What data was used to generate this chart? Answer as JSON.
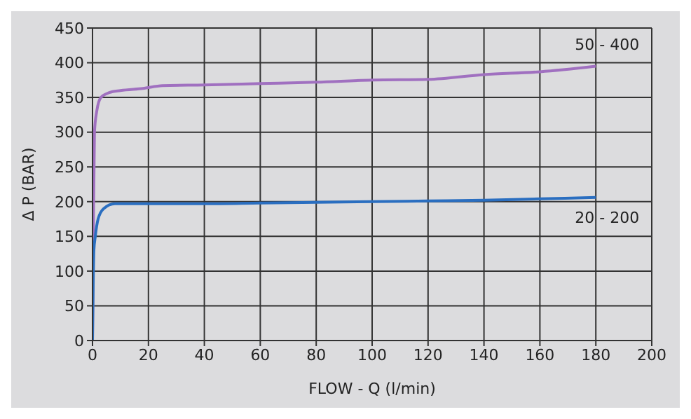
{
  "chart_data": {
    "type": "line",
    "xlabel": "FLOW - Q (l/min)",
    "ylabel": "Δ P (BAR)",
    "xlim": [
      0,
      200
    ],
    "xticks": [
      0,
      20,
      40,
      60,
      80,
      100,
      120,
      140,
      160,
      180,
      200
    ],
    "ylim": [
      0,
      450
    ],
    "yticks": [
      0,
      50,
      100,
      150,
      200,
      250,
      300,
      350,
      400,
      450
    ],
    "grid": true,
    "marker": "none",
    "line_style": "solid",
    "series": [
      {
        "name": "50 - 400",
        "color": "#a070c0",
        "x": [
          0,
          0.3,
          0.7,
          1.5,
          3,
          6,
          10,
          18,
          25,
          40,
          60,
          80,
          100,
          120,
          140,
          160,
          180
        ],
        "values": [
          0,
          150,
          300,
          330,
          350,
          357,
          360,
          363,
          367,
          368,
          370,
          372,
          375,
          376,
          383,
          387,
          395
        ]
      },
      {
        "name": "20 - 200",
        "color": "#2a6ec0",
        "x": [
          0,
          0.5,
          1,
          2,
          4,
          8,
          20,
          40,
          60,
          80,
          100,
          120,
          140,
          160,
          180
        ],
        "values": [
          0,
          130,
          150,
          175,
          190,
          197,
          197,
          197,
          198,
          199,
          200,
          201,
          202,
          204,
          206
        ]
      }
    ]
  }
}
